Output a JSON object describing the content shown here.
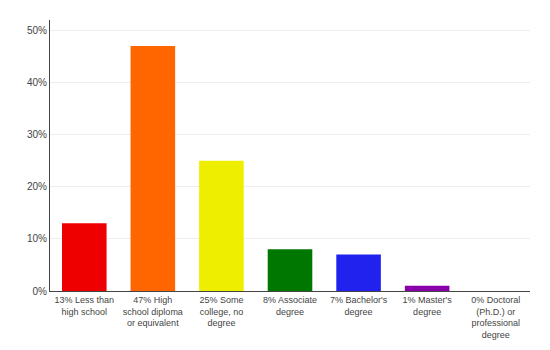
{
  "chart_data": {
    "type": "bar",
    "categories": [
      "13% Less than\nhigh school",
      "47% High\nschool diploma\nor equivalent",
      "25% Some\ncollege, no\ndegree",
      "8% Associate\ndegree",
      "7% Bachelor's\ndegree",
      "1% Master's\ndegree",
      "0% Doctoral\n(Ph.D.) or\nprofessional\ndegree"
    ],
    "values": [
      13,
      47,
      25,
      8,
      7,
      1,
      0
    ],
    "colors": [
      "#EE0000",
      "#FF6600",
      "#EEEE00",
      "#007700",
      "#2222EE",
      "#8800AA",
      "#FF44FF"
    ],
    "ylim": [
      0,
      52
    ],
    "yticks": [
      {
        "value": 0,
        "label": "0%"
      },
      {
        "value": 10,
        "label": "10%"
      },
      {
        "value": 20,
        "label": "20%"
      },
      {
        "value": 30,
        "label": "30%"
      },
      {
        "value": 40,
        "label": "40%"
      },
      {
        "value": 50,
        "label": "50%"
      }
    ],
    "grid": true
  }
}
